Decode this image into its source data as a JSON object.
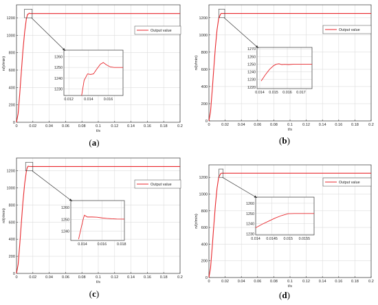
{
  "chart_data": [
    {
      "type": "line",
      "panel_label": "(a)",
      "xlabel": "t/s",
      "ylabel": "n/(r/min)",
      "xlim": [
        0,
        0.2
      ],
      "ylim": [
        0,
        1350
      ],
      "xticks": [
        0,
        0.02,
        0.04,
        0.06,
        0.08,
        0.1,
        0.12,
        0.14,
        0.16,
        0.18,
        0.2
      ],
      "xtick_labels": [
        "0",
        "0.02",
        "0.04",
        "0.06",
        "0.08",
        "0.1",
        "0.12",
        "0.14",
        "0.16",
        "0.18",
        "0.2"
      ],
      "yticks": [
        0,
        200,
        400,
        600,
        800,
        1000,
        1200
      ],
      "ytick_labels": [
        "0",
        "200",
        "400",
        "600",
        "800",
        "1000",
        "1200"
      ],
      "grid": true,
      "legend_position": "top-right",
      "series": [
        {
          "name": "Output value",
          "color": "#e8262b",
          "x": [
            0,
            0.002,
            0.004,
            0.006,
            0.008,
            0.01,
            0.012,
            0.0135,
            0.014,
            0.0145,
            0.015,
            0.0155,
            0.016,
            0.0165,
            0.017,
            0.2
          ],
          "y": [
            0,
            100,
            330,
            590,
            840,
            1040,
            1185,
            1240,
            1244,
            1243,
            1248,
            1254,
            1252,
            1250,
            1250,
            1250
          ]
        }
      ],
      "inset": {
        "xlim": [
          0.0115,
          0.0175
        ],
        "ylim": [
          1224,
          1266
        ],
        "xticks": [
          0.012,
          0.014,
          0.016
        ],
        "xtick_labels": [
          "0.012",
          "0.014",
          "0.016"
        ],
        "yticks": [
          1230,
          1240,
          1250,
          1260
        ],
        "ytick_labels": [
          "1230",
          "1240",
          "1250",
          "1260"
        ],
        "x": [
          0.0133,
          0.01355,
          0.0139,
          0.0142,
          0.0145,
          0.0148,
          0.0152,
          0.0155,
          0.0158,
          0.0162,
          0.0166,
          0.017,
          0.0175
        ],
        "y": [
          1224,
          1238,
          1244,
          1243.5,
          1244,
          1248,
          1253,
          1254.5,
          1252.5,
          1250.5,
          1250,
          1250,
          1250
        ]
      }
    },
    {
      "type": "line",
      "panel_label": "(b)",
      "xlabel": "t/s",
      "ylabel": "n/(r/min)",
      "xlim": [
        0,
        0.2
      ],
      "ylim": [
        0,
        1350
      ],
      "xticks": [
        0,
        0.02,
        0.04,
        0.06,
        0.08,
        0.1,
        0.12,
        0.14,
        0.16,
        0.18,
        0.2
      ],
      "xtick_labels": [
        "0",
        "0.02",
        "0.04",
        "0.06",
        "0.08",
        "0.1",
        "0.12",
        "0.14",
        "0.16",
        "0.18",
        "0.2"
      ],
      "yticks": [
        0,
        200,
        400,
        600,
        800,
        1000,
        1200
      ],
      "ytick_labels": [
        "0",
        "200",
        "400",
        "600",
        "800",
        "1000",
        "1200"
      ],
      "grid": true,
      "legend_position": "top-right",
      "series": [
        {
          "name": "Output value",
          "color": "#e8262b",
          "x": [
            0,
            0.002,
            0.004,
            0.006,
            0.008,
            0.01,
            0.012,
            0.014,
            0.0145,
            0.015,
            0.0155,
            0.016,
            0.0165,
            0.017,
            0.2
          ],
          "y": [
            0,
            110,
            350,
            610,
            860,
            1060,
            1190,
            1235,
            1244,
            1249,
            1250.5,
            1249.5,
            1250,
            1250,
            1250
          ]
        }
      ],
      "inset": {
        "xlim": [
          0.0138,
          0.0178
        ],
        "ylim": [
          1218,
          1272
        ],
        "xticks": [
          0.014,
          0.015,
          0.016,
          0.017
        ],
        "xtick_labels": [
          "0.014",
          "0.015",
          "0.016",
          "0.017"
        ],
        "yticks": [
          1220,
          1230,
          1240,
          1250,
          1260,
          1270
        ],
        "ytick_labels": [
          "1220",
          "1230",
          "1240",
          "1250",
          "1260",
          "1270"
        ],
        "x": [
          0.0141,
          0.0144,
          0.0147,
          0.015,
          0.0152,
          0.0154,
          0.0156,
          0.0158,
          0.0161,
          0.0165,
          0.017,
          0.0178
        ],
        "y": [
          1228,
          1236,
          1243,
          1248,
          1250,
          1250.5,
          1249.5,
          1249.8,
          1249.5,
          1250,
          1250,
          1250
        ]
      }
    },
    {
      "type": "line",
      "panel_label": "(c)",
      "xlabel": "t/s",
      "ylabel": "n/(r/min)",
      "xlim": [
        0,
        0.2
      ],
      "ylim": [
        0,
        1350
      ],
      "xticks": [
        0,
        0.02,
        0.04,
        0.06,
        0.08,
        0.1,
        0.12,
        0.14,
        0.16,
        0.18,
        0.2
      ],
      "xtick_labels": [
        "0",
        "0.02",
        "0.04",
        "0.06",
        "0.08",
        "0.1",
        "0.12",
        "0.14",
        "0.16",
        "0.18",
        "0.2"
      ],
      "yticks": [
        0,
        200,
        400,
        600,
        800,
        1000,
        1200
      ],
      "ytick_labels": [
        "0",
        "200",
        "400",
        "600",
        "800",
        "1000",
        "1200"
      ],
      "grid": true,
      "legend_position": "top-right",
      "series": [
        {
          "name": "Output value",
          "color": "#e8262b",
          "x": [
            0,
            0.002,
            0.004,
            0.006,
            0.008,
            0.01,
            0.012,
            0.013,
            0.0138,
            0.0142,
            0.015,
            0.016,
            0.017,
            0.018,
            0.2
          ],
          "y": [
            0,
            105,
            340,
            600,
            850,
            1050,
            1190,
            1232,
            1248,
            1254,
            1252,
            1251,
            1250.5,
            1250,
            1250
          ]
        }
      ],
      "inset": {
        "xlim": [
          0.0128,
          0.0183
        ],
        "ylim": [
          1232,
          1266
        ],
        "xticks": [
          0.014,
          0.016,
          0.018
        ],
        "xtick_labels": [
          "0.014",
          "0.016",
          "0.018"
        ],
        "yticks": [
          1240,
          1250,
          1260
        ],
        "ytick_labels": [
          "1240",
          "1250",
          "1260"
        ],
        "x": [
          0.0136,
          0.0139,
          0.0141,
          0.0142,
          0.0143,
          0.0145,
          0.015,
          0.0155,
          0.016,
          0.0165,
          0.017,
          0.0175,
          0.0183
        ],
        "y": [
          1233,
          1244,
          1251,
          1253.5,
          1253,
          1252,
          1252,
          1251.8,
          1251.2,
          1250.8,
          1250.5,
          1250.3,
          1250.2
        ]
      }
    },
    {
      "type": "line",
      "panel_label": "(d)",
      "xlabel": "t/s",
      "ylabel": "n/(r/min)",
      "xlim": [
        0,
        0.2
      ],
      "ylim": [
        0,
        1350
      ],
      "xticks": [
        0,
        0.02,
        0.04,
        0.06,
        0.08,
        0.1,
        0.12,
        0.14,
        0.16,
        0.18,
        0.2
      ],
      "xtick_labels": [
        "0",
        "0.02",
        "0.04",
        "0.06",
        "0.08",
        "0.1",
        "0.12",
        "0.14",
        "0.16",
        "0.18",
        "0.2"
      ],
      "yticks": [
        0,
        200,
        400,
        600,
        800,
        1000,
        1200
      ],
      "ytick_labels": [
        "0",
        "200",
        "400",
        "600",
        "800",
        "1000",
        "1200"
      ],
      "grid": true,
      "legend_position": "top-right",
      "series": [
        {
          "name": "Output value",
          "color": "#e8262b",
          "x": [
            0,
            0.002,
            0.004,
            0.006,
            0.008,
            0.01,
            0.012,
            0.014,
            0.0145,
            0.015,
            0.0155,
            0.016,
            0.2
          ],
          "y": [
            0,
            115,
            360,
            620,
            870,
            1070,
            1200,
            1237,
            1244,
            1249,
            1250,
            1250,
            1250
          ]
        }
      ],
      "inset": {
        "xlim": [
          0.014,
          0.0158
        ],
        "ylim": [
          1229,
          1266
        ],
        "xticks": [
          0.014,
          0.0145,
          0.015,
          0.0155
        ],
        "xtick_labels": [
          "0.014",
          "0.0145",
          "0.015",
          "0.0155"
        ],
        "yticks": [
          1230,
          1240,
          1250,
          1260
        ],
        "ytick_labels": [
          "1230",
          "1240",
          "1250",
          "1260"
        ],
        "x": [
          0.014,
          0.0142,
          0.0144,
          0.0146,
          0.0148,
          0.015,
          0.0152,
          0.0155,
          0.0158
        ],
        "y": [
          1236,
          1239.5,
          1242.5,
          1245.5,
          1248,
          1249.8,
          1250,
          1250,
          1250
        ]
      }
    }
  ]
}
